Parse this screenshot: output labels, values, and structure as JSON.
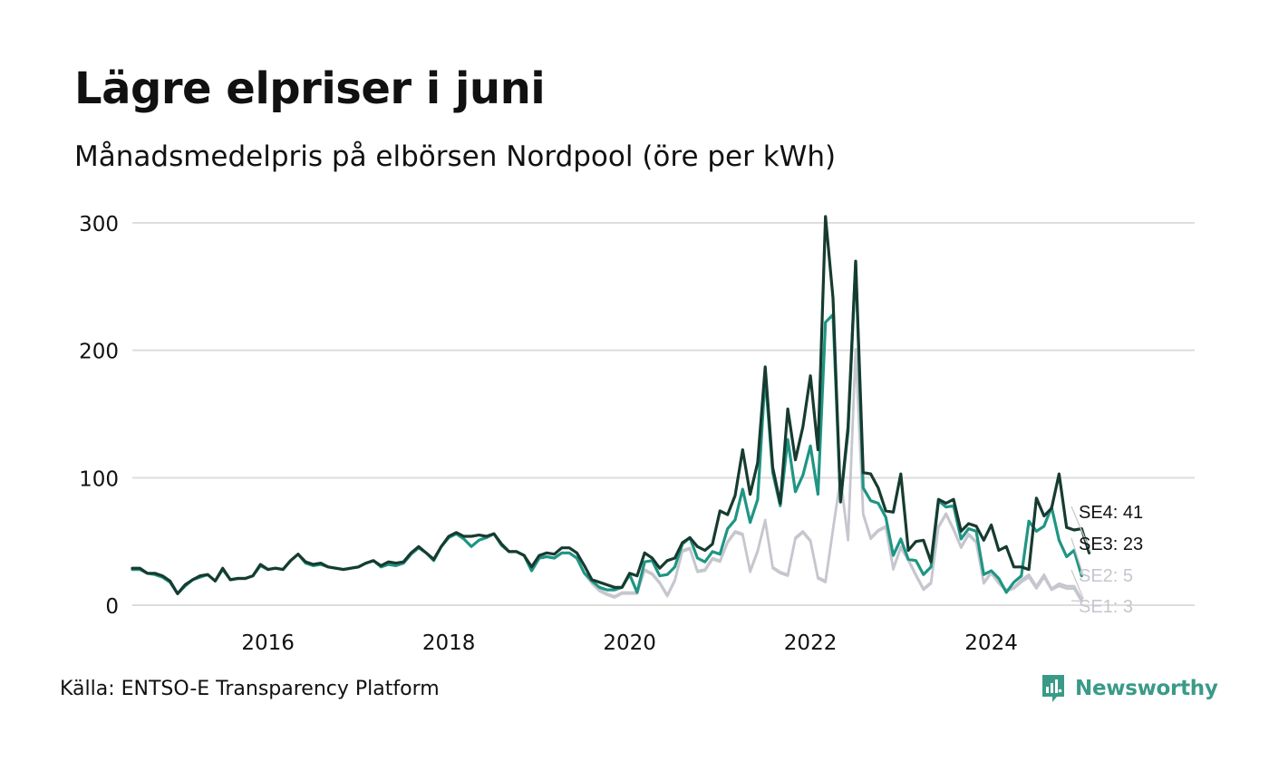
{
  "header": {
    "title": "Lägre elpriser i juni",
    "subtitle": "Månadsmedelpris på elbörsen Nordpool (öre per kWh)"
  },
  "footer": {
    "source": "Källa: ENTSO-E Transparency Platform",
    "brand": "Newsworthy",
    "brand_icon": "newsworthy-logo-icon"
  },
  "colors": {
    "SE4": "#173b30",
    "SE3": "#1f9583",
    "SE2": "#c6c6cf",
    "SE1": "#c6c6cf",
    "grid": "#dddddd",
    "brand": "#3a9a88"
  },
  "chart_data": {
    "type": "line",
    "title": "Lägre elpriser i juni",
    "subtitle": "Månadsmedelpris på elbörsen Nordpool (öre per kWh)",
    "xlabel": "",
    "ylabel": "",
    "x_start": "2015-01",
    "xlim": [
      "2015-01",
      "2026-10"
    ],
    "ylim": [
      0,
      310
    ],
    "yticks": [
      0,
      100,
      200,
      300
    ],
    "xticks": [
      {
        "label": "2016",
        "date": "2016-07"
      },
      {
        "label": "2018",
        "date": "2018-07"
      },
      {
        "label": "2020",
        "date": "2020-07"
      },
      {
        "label": "2022",
        "date": "2022-07"
      },
      {
        "label": "2024",
        "date": "2024-07"
      }
    ],
    "grid": true,
    "legend": "end-labels",
    "series": [
      {
        "name": "SE4",
        "end_label": "SE4: 41",
        "values": [
          29,
          29,
          25,
          25,
          23,
          19,
          9,
          16,
          20,
          23,
          24,
          19,
          29,
          20,
          21,
          21,
          23,
          32,
          28,
          29,
          28,
          35,
          40,
          34,
          32,
          33,
          30,
          29,
          28,
          29,
          30,
          33,
          35,
          31,
          34,
          33,
          34,
          41,
          46,
          41,
          36,
          46,
          54,
          57,
          54,
          54,
          55,
          54,
          56,
          48,
          42,
          42,
          39,
          30,
          39,
          41,
          40,
          45,
          45,
          41,
          31,
          20,
          18,
          16,
          14,
          14,
          25,
          23,
          41,
          37,
          29,
          35,
          37,
          49,
          53,
          46,
          43,
          48,
          74,
          71,
          86,
          122,
          87,
          112,
          187,
          108,
          80,
          154,
          114,
          140,
          180,
          122,
          305,
          241,
          81,
          140,
          270,
          104,
          103,
          92,
          74,
          73,
          103,
          43,
          50,
          51,
          34,
          83,
          80,
          83,
          58,
          64,
          62,
          51,
          63,
          43,
          46,
          30,
          30,
          28,
          84,
          70,
          76,
          103,
          61,
          59,
          60,
          41
        ],
        "color": "#173b30"
      },
      {
        "name": "SE3",
        "end_label": "SE3: 23",
        "values": [
          28,
          28,
          25,
          24,
          22,
          18,
          9,
          15,
          20,
          22,
          24,
          19,
          28,
          20,
          21,
          21,
          23,
          31,
          28,
          29,
          28,
          35,
          40,
          33,
          31,
          32,
          30,
          29,
          28,
          29,
          30,
          33,
          35,
          30,
          32,
          31,
          33,
          40,
          45,
          41,
          35,
          46,
          53,
          56,
          52,
          46,
          51,
          53,
          56,
          47,
          42,
          42,
          39,
          27,
          37,
          38,
          37,
          41,
          41,
          37,
          25,
          19,
          14,
          12,
          12,
          14,
          24,
          10,
          34,
          35,
          23,
          24,
          30,
          48,
          53,
          37,
          34,
          42,
          40,
          60,
          67,
          91,
          65,
          83,
          180,
          104,
          78,
          130,
          89,
          102,
          125,
          87,
          222,
          228,
          82,
          136,
          269,
          92,
          82,
          80,
          69,
          39,
          52,
          36,
          35,
          24,
          30,
          82,
          77,
          78,
          52,
          60,
          58,
          24,
          27,
          21,
          10,
          18,
          23,
          66,
          58,
          62,
          77,
          51,
          38,
          43,
          23
        ],
        "color": "#1f9583"
      },
      {
        "name": "SE2",
        "end_label": "SE2: 5",
        "values": [
          28,
          28,
          25,
          24,
          22,
          18,
          9,
          15,
          20,
          22,
          24,
          19,
          28,
          20,
          21,
          21,
          23,
          31,
          28,
          29,
          28,
          35,
          40,
          33,
          31,
          32,
          30,
          29,
          28,
          29,
          30,
          33,
          35,
          30,
          32,
          31,
          33,
          40,
          45,
          41,
          35,
          46,
          53,
          56,
          52,
          46,
          51,
          53,
          56,
          47,
          42,
          42,
          39,
          27,
          37,
          38,
          37,
          41,
          41,
          37,
          25,
          17,
          12,
          9,
          7,
          10,
          10,
          10,
          28,
          25,
          18,
          8,
          20,
          43,
          45,
          27,
          28,
          37,
          35,
          50,
          58,
          56,
          27,
          43,
          67,
          30,
          26,
          24,
          53,
          58,
          51,
          22,
          19,
          60,
          100,
          52,
          201,
          72,
          53,
          59,
          62,
          29,
          46,
          36,
          24,
          13,
          18,
          62,
          72,
          60,
          46,
          56,
          50,
          18,
          26,
          18,
          12,
          14,
          20,
          24,
          15,
          24,
          13,
          17,
          15,
          15,
          5
        ],
        "color": "#c6c6cf"
      },
      {
        "name": "SE1",
        "end_label": "SE1: 3",
        "values": [
          28,
          28,
          25,
          24,
          22,
          18,
          9,
          15,
          20,
          22,
          24,
          19,
          28,
          20,
          21,
          21,
          23,
          31,
          28,
          29,
          28,
          35,
          40,
          33,
          31,
          32,
          30,
          29,
          28,
          29,
          30,
          33,
          35,
          30,
          32,
          31,
          33,
          40,
          45,
          41,
          35,
          46,
          53,
          56,
          52,
          46,
          51,
          53,
          56,
          47,
          42,
          42,
          39,
          27,
          37,
          38,
          37,
          41,
          41,
          37,
          25,
          17,
          11,
          8,
          6,
          9,
          9,
          9,
          27,
          24,
          17,
          7,
          19,
          42,
          44,
          26,
          27,
          36,
          34,
          49,
          57,
          55,
          26,
          42,
          66,
          29,
          25,
          23,
          52,
          57,
          50,
          21,
          18,
          59,
          99,
          51,
          200,
          71,
          52,
          58,
          61,
          28,
          45,
          35,
          23,
          12,
          17,
          61,
          71,
          59,
          45,
          55,
          49,
          17,
          25,
          17,
          11,
          13,
          18,
          22,
          13,
          22,
          12,
          15,
          13,
          13,
          3
        ],
        "color": "#c6c6cf"
      }
    ]
  }
}
